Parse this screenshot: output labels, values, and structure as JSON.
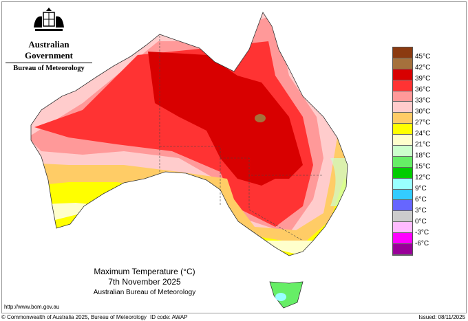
{
  "header": {
    "government": "Australian Government",
    "bureau": "Bureau of Meteorology"
  },
  "title": {
    "line1": "Maximum Temperature (°C)",
    "line2": "7th November 2025",
    "line3": "Australian Bureau of Meteorology"
  },
  "legend": {
    "colors": [
      "#8b3a10",
      "#a5713c",
      "#d80000",
      "#ff3333",
      "#ff9999",
      "#ffcccc",
      "#ffcc66",
      "#ffff00",
      "#ffffcc",
      "#ccffcc",
      "#66ee66",
      "#00cc00",
      "#99ffff",
      "#33ccff",
      "#6666ff",
      "#cccccc",
      "#ffbbff",
      "#ff00ff",
      "#990099"
    ],
    "labels": [
      "45°C",
      "42°C",
      "39°C",
      "36°C",
      "33°C",
      "30°C",
      "27°C",
      "24°C",
      "21°C",
      "18°C",
      "15°C",
      "12°C",
      "9°C",
      "6°C",
      "3°C",
      "0°C",
      "-3°C",
      "-6°C"
    ]
  },
  "footer": {
    "url": "http://www.bom.gov.au",
    "copyright": "© Commonwealth of Australia 2025, Bureau of Meteorology",
    "id_code": "ID code: AWAP",
    "issued": "Issued: 08/11/2025"
  }
}
